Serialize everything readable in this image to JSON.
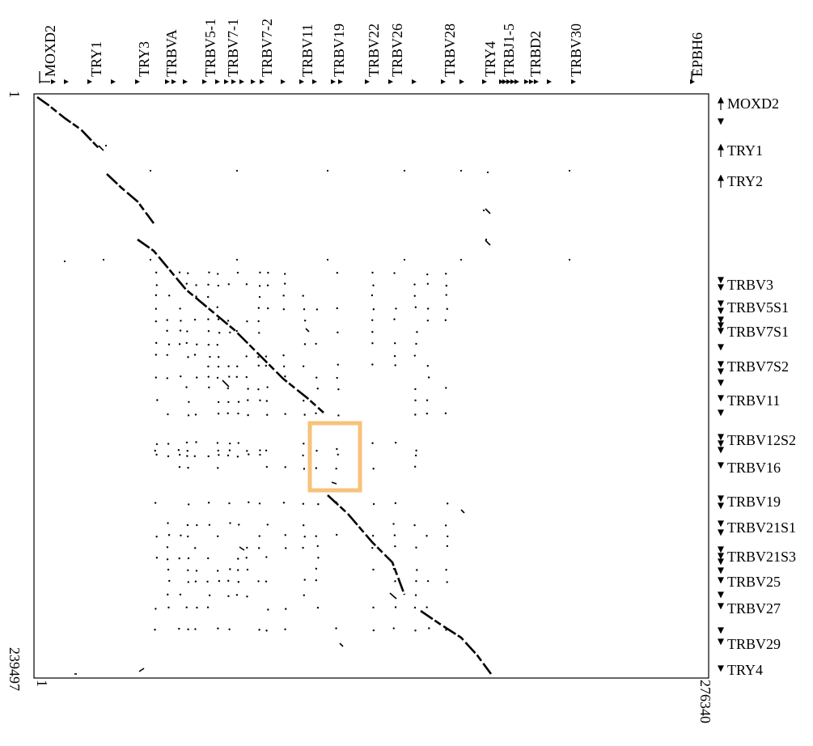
{
  "figure": {
    "top_genes": [
      "MOXD2",
      "TRY1",
      "TRY3",
      "TRBVA",
      "TRBV5-1",
      "TRBV7-1",
      "TRBV7-2",
      "TRBV11",
      "TRBV19",
      "TRBV22",
      "TRBV26",
      "TRBV28",
      "TRY4",
      "TRBJ1-5",
      "TRBD2",
      "TRBV30",
      "EPBH6"
    ],
    "right_genes": [
      "MOXD2",
      "TRY1",
      "TRY2",
      "TRBV3",
      "TRBV5S1",
      "TRBV7S1",
      "TRBV7S2",
      "TRBV11",
      "TRBV12S2",
      "TRBV16",
      "TRBV19",
      "TRBV21S1",
      "TRBV21S3",
      "TRBV25",
      "TRBV27",
      "TRBV29",
      "TRY4"
    ],
    "x_axis": {
      "start_label": "1",
      "end_label": "276340"
    },
    "y_axis": {
      "start_label": "1",
      "end_label": "239497"
    },
    "highlight_color": "#f7c27a"
  }
}
